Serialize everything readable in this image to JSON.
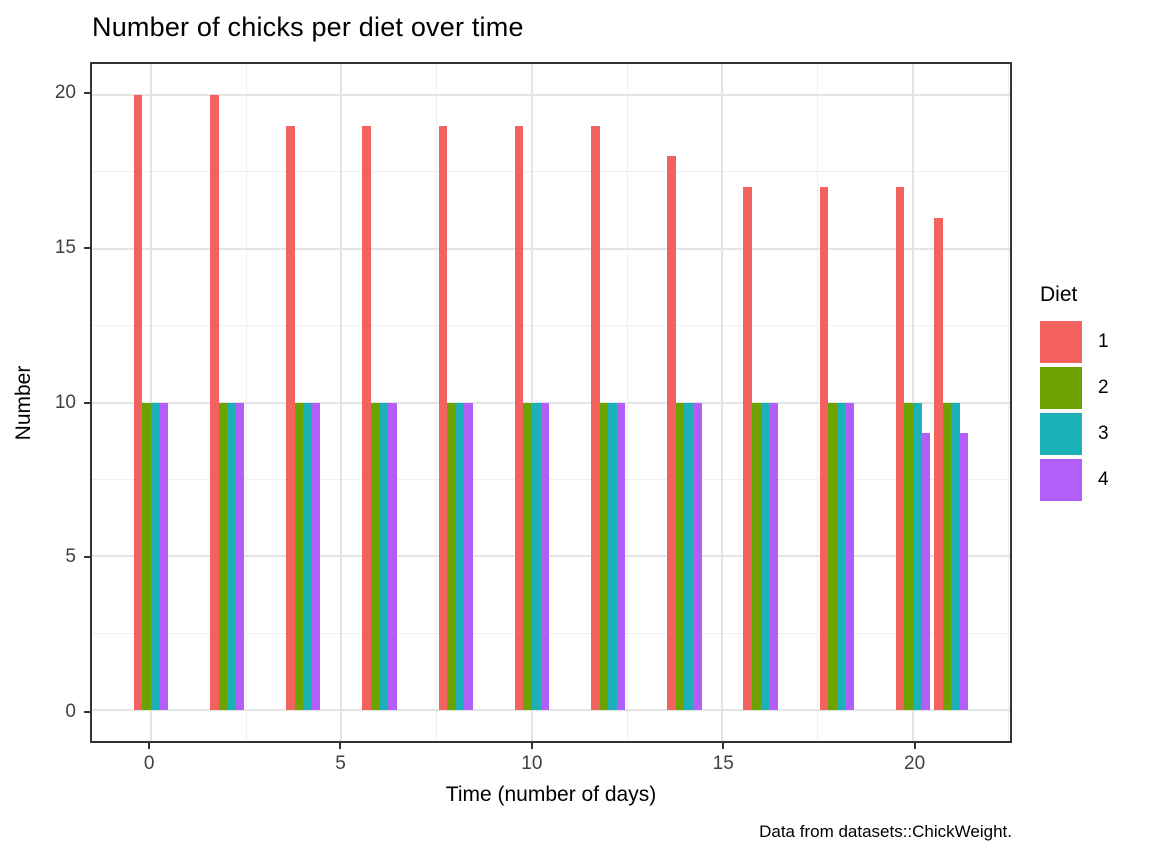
{
  "title": "Number of chicks per diet over time",
  "caption": "Data from datasets::ChickWeight.",
  "legend": {
    "title": "Diet",
    "entries": [
      {
        "label": "1",
        "color": "#F3625F"
      },
      {
        "label": "2",
        "color": "#6DA300"
      },
      {
        "label": "3",
        "color": "#1CB0B7"
      },
      {
        "label": "4",
        "color": "#B45EF9"
      }
    ]
  },
  "chart_data": {
    "type": "bar",
    "title": "Number of chicks per diet over time",
    "xlabel": "Time (number of days)",
    "ylabel": "Number",
    "categories": [
      0,
      2,
      4,
      6,
      8,
      10,
      12,
      14,
      16,
      18,
      20,
      21
    ],
    "series": [
      {
        "name": "1",
        "color": "#F3625F",
        "values": [
          20,
          20,
          19,
          19,
          19,
          19,
          19,
          18,
          17,
          17,
          17,
          16
        ]
      },
      {
        "name": "2",
        "color": "#6DA300",
        "values": [
          10,
          10,
          10,
          10,
          10,
          10,
          10,
          10,
          10,
          10,
          10,
          10
        ]
      },
      {
        "name": "3",
        "color": "#1CB0B7",
        "values": [
          10,
          10,
          10,
          10,
          10,
          10,
          10,
          10,
          10,
          10,
          10,
          10
        ]
      },
      {
        "name": "4",
        "color": "#B45EF9",
        "values": [
          10,
          10,
          10,
          10,
          10,
          10,
          10,
          10,
          10,
          10,
          9,
          9
        ]
      }
    ],
    "xlim": [
      -1.545,
      22.545
    ],
    "ylim": [
      -1,
      21
    ],
    "x_ticks": [
      0,
      5,
      10,
      15,
      20
    ],
    "y_ticks": [
      0,
      5,
      10,
      15,
      20
    ],
    "x_minor_ticks": [
      2.5,
      7.5,
      12.5,
      17.5,
      22.5
    ],
    "y_minor_ticks": [
      2.5,
      7.5,
      12.5,
      17.5
    ],
    "bar_width": 0.225,
    "dodge_width": 0.9,
    "grid": true,
    "legend_title": "Diet",
    "legend_position": "right",
    "colors": {
      "grid_major": "#e4e4e4",
      "grid_minor": "#efefef",
      "panel_border": "#333333",
      "axis_text": "#404040"
    }
  }
}
